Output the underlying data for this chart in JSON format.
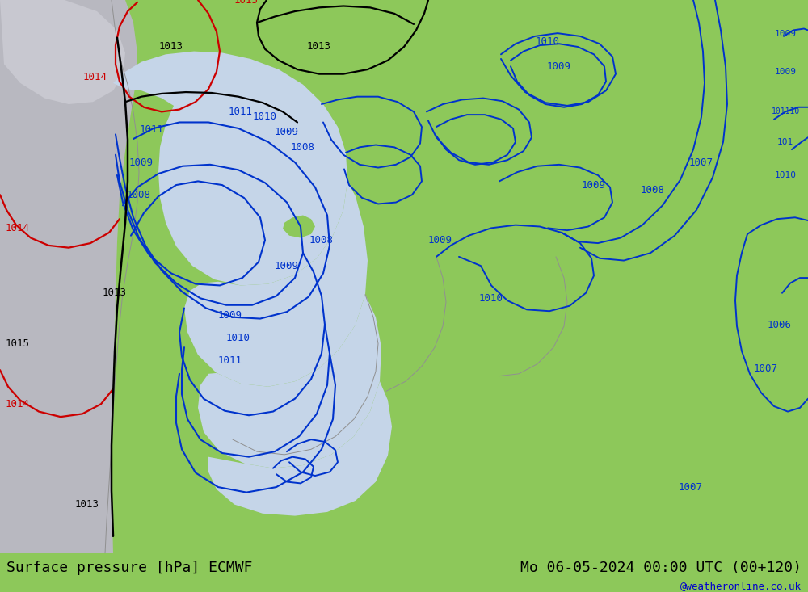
{
  "title_left": "Surface pressure [hPa] ECMWF",
  "title_right": "Mo 06-05-2024 00:00 UTC (00+120)",
  "watermark": "@weatheronline.co.uk",
  "bg_color_land": "#8dc85a",
  "bg_color_sea": "#c5d5e8",
  "bg_color_gray": "#b8b8c0",
  "contour_color_blue": "#0033cc",
  "contour_color_black": "#000000",
  "contour_color_red": "#cc0000",
  "contour_color_gray": "#909090",
  "text_color_bottom": "#000000",
  "watermark_color": "#0000cc",
  "font_size_bottom": 13,
  "font_size_label": 9,
  "font_size_watermark": 9
}
